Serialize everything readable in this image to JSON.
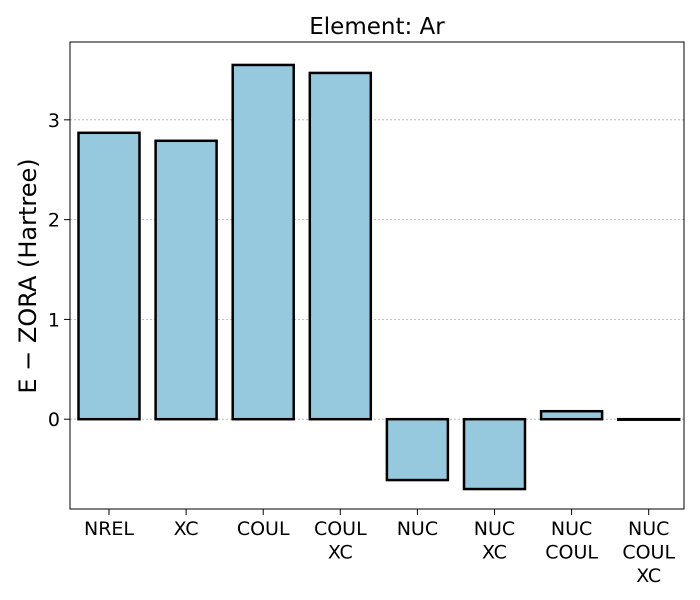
{
  "chart_data": {
    "type": "bar",
    "title": "Element: Ar",
    "xlabel": "",
    "ylabel": "E − ZORA (Hartree)",
    "categories": [
      "NREL",
      "XC",
      "COUL",
      "COUL\nXC",
      "NUC",
      "NUC\nXC",
      "NUC\nCOUL",
      "NUC\nCOUL\nXC"
    ],
    "values": [
      2.87,
      2.79,
      3.55,
      3.47,
      -0.61,
      -0.7,
      0.08,
      0.0
    ],
    "ylim": [
      -0.9,
      3.78
    ],
    "yticks": [
      0,
      1,
      2,
      3
    ],
    "grid": "y",
    "bar_color": "#96c9dd",
    "edge_color": "#000000",
    "legend": "none"
  }
}
